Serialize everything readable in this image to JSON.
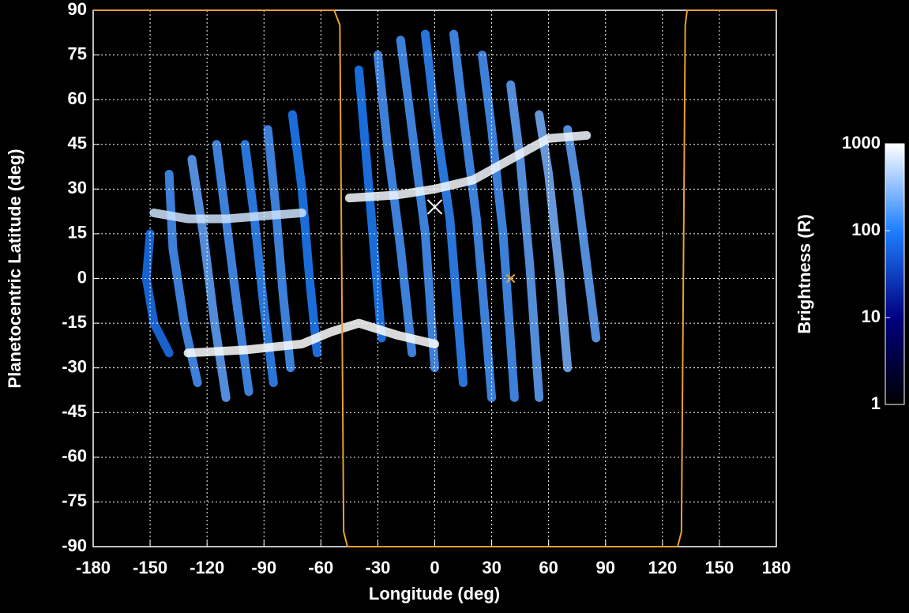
{
  "chart_data": {
    "type": "map",
    "xlabel": "Longitude (deg)",
    "ylabel": "Planetocentric Latitude (deg)",
    "xlim": [
      -180,
      180
    ],
    "ylim": [
      -90,
      90
    ],
    "xticks": [
      -180,
      -150,
      -120,
      -90,
      -60,
      -30,
      0,
      30,
      60,
      90,
      120,
      150,
      180
    ],
    "yticks": [
      90,
      75,
      60,
      45,
      30,
      15,
      0,
      -15,
      -30,
      -45,
      -60,
      -75,
      -90
    ],
    "grid": true,
    "terminator": {
      "color": "#e8a030",
      "lon": [
        -180,
        -53,
        -50,
        -49,
        -48,
        -46,
        128,
        130,
        131,
        132,
        133,
        180
      ],
      "lat": [
        90,
        90,
        85,
        0,
        -85,
        -90,
        -90,
        -85,
        0,
        85,
        90,
        90
      ]
    },
    "streaks": [
      {
        "lon": [
          -150,
          -152,
          -148,
          -140
        ],
        "lat": [
          15,
          0,
          -15,
          -25
        ],
        "brightness": 80
      },
      {
        "lon": [
          -140,
          -138,
          -132,
          -125
        ],
        "lat": [
          35,
          10,
          -15,
          -35
        ],
        "brightness": 150
      },
      {
        "lon": [
          -128,
          -122,
          -116,
          -110
        ],
        "lat": [
          40,
          15,
          -15,
          -40
        ],
        "brightness": 200
      },
      {
        "lon": [
          -115,
          -110,
          -104,
          -98
        ],
        "lat": [
          45,
          20,
          -10,
          -38
        ],
        "brightness": 150
      },
      {
        "lon": [
          -100,
          -95,
          -90,
          -85
        ],
        "lat": [
          45,
          20,
          -10,
          -35
        ],
        "brightness": 120
      },
      {
        "lon": [
          -88,
          -84,
          -80,
          -76
        ],
        "lat": [
          50,
          25,
          -5,
          -30
        ],
        "brightness": 150
      },
      {
        "lon": [
          -75,
          -70,
          -66,
          -62
        ],
        "lat": [
          55,
          30,
          0,
          -25
        ],
        "brightness": 100
      },
      {
        "lon": [
          -40,
          -36,
          -32,
          -28
        ],
        "lat": [
          70,
          40,
          10,
          -20
        ],
        "brightness": 100
      },
      {
        "lon": [
          -30,
          -25,
          -18,
          -12
        ],
        "lat": [
          75,
          45,
          10,
          -25
        ],
        "brightness": 150
      },
      {
        "lon": [
          -18,
          -12,
          -5,
          0
        ],
        "lat": [
          80,
          50,
          15,
          -30
        ],
        "brightness": 150
      },
      {
        "lon": [
          -5,
          0,
          8,
          15
        ],
        "lat": [
          82,
          55,
          20,
          -35
        ],
        "brightness": 120
      },
      {
        "lon": [
          10,
          15,
          22,
          30
        ],
        "lat": [
          82,
          55,
          20,
          -40
        ],
        "brightness": 150
      },
      {
        "lon": [
          25,
          30,
          36,
          42
        ],
        "lat": [
          75,
          50,
          15,
          -40
        ],
        "brightness": 150
      },
      {
        "lon": [
          40,
          45,
          50,
          55
        ],
        "lat": [
          65,
          40,
          5,
          -40
        ],
        "brightness": 200
      },
      {
        "lon": [
          55,
          60,
          66,
          70
        ],
        "lat": [
          55,
          35,
          0,
          -30
        ],
        "brightness": 250
      },
      {
        "lon": [
          70,
          75,
          80,
          85
        ],
        "lat": [
          50,
          30,
          5,
          -20
        ],
        "brightness": 200
      },
      {
        "lon": [
          -148,
          -130,
          -110,
          -90,
          -70
        ],
        "lat": [
          22,
          20,
          20,
          21,
          22
        ],
        "brightness": 600
      },
      {
        "lon": [
          -130,
          -100,
          -70,
          -55,
          -40,
          -20,
          0
        ],
        "lat": [
          -25,
          -24,
          -22,
          -18,
          -15,
          -19,
          -22
        ],
        "brightness": 1000
      },
      {
        "lon": [
          -45,
          -20,
          0,
          20,
          40,
          60,
          80
        ],
        "lat": [
          27,
          28,
          30,
          33,
          40,
          47,
          48
        ],
        "brightness": 900
      }
    ],
    "markers": [
      {
        "lon": 0,
        "lat": 24,
        "color": "#ffffff"
      },
      {
        "lon": 40,
        "lat": 0,
        "color": "#e8a030"
      }
    ],
    "colorbar": {
      "label": "Brightness (R)",
      "lim": [
        1,
        1000
      ],
      "ticks": [
        1000,
        100,
        10,
        1
      ],
      "log": true,
      "colors": [
        "#000000",
        "#000080",
        "#1e7fff",
        "#ffffff"
      ]
    }
  }
}
